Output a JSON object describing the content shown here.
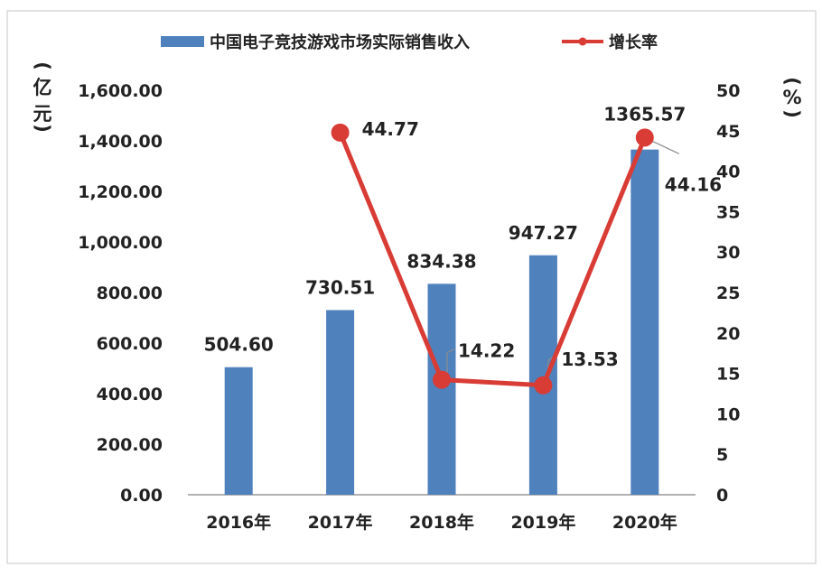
{
  "chart_data": {
    "type": "bar",
    "categories": [
      "2016年",
      "2017年",
      "2018年",
      "2019年",
      "2020年"
    ],
    "series": [
      {
        "name": "中国电子竞技游戏市场实际销售收入",
        "type": "bar",
        "axis": "left",
        "values": [
          504.6,
          730.51,
          834.38,
          947.27,
          1365.57
        ],
        "labels": [
          "504.60",
          "730.51",
          "834.38",
          "947.27",
          "1365.57"
        ]
      },
      {
        "name": "增长率",
        "type": "line",
        "axis": "right",
        "values": [
          null,
          44.77,
          14.22,
          13.53,
          44.16
        ],
        "labels": [
          "",
          "44.77",
          "14.22",
          "13.53",
          "44.16"
        ]
      }
    ],
    "y_left": {
      "unit_chars": [
        "(",
        "亿",
        "元",
        ")"
      ],
      "ylim": [
        0,
        1600
      ],
      "ticks": [
        "0.00",
        "200.00",
        "400.00",
        "600.00",
        "800.00",
        "1,000.00",
        "1,200.00",
        "1,400.00",
        "1,600.00"
      ]
    },
    "y_right": {
      "unit_chars": [
        "(",
        "%",
        ")"
      ],
      "ylim": [
        0,
        50
      ],
      "ticks": [
        "0",
        "5",
        "10",
        "15",
        "20",
        "25",
        "30",
        "35",
        "40",
        "45",
        "50"
      ]
    },
    "grid": false,
    "legend_position": "top",
    "colors": {
      "bar": "#4f81bd",
      "line": "#d93b35",
      "axis": "#999999"
    }
  }
}
